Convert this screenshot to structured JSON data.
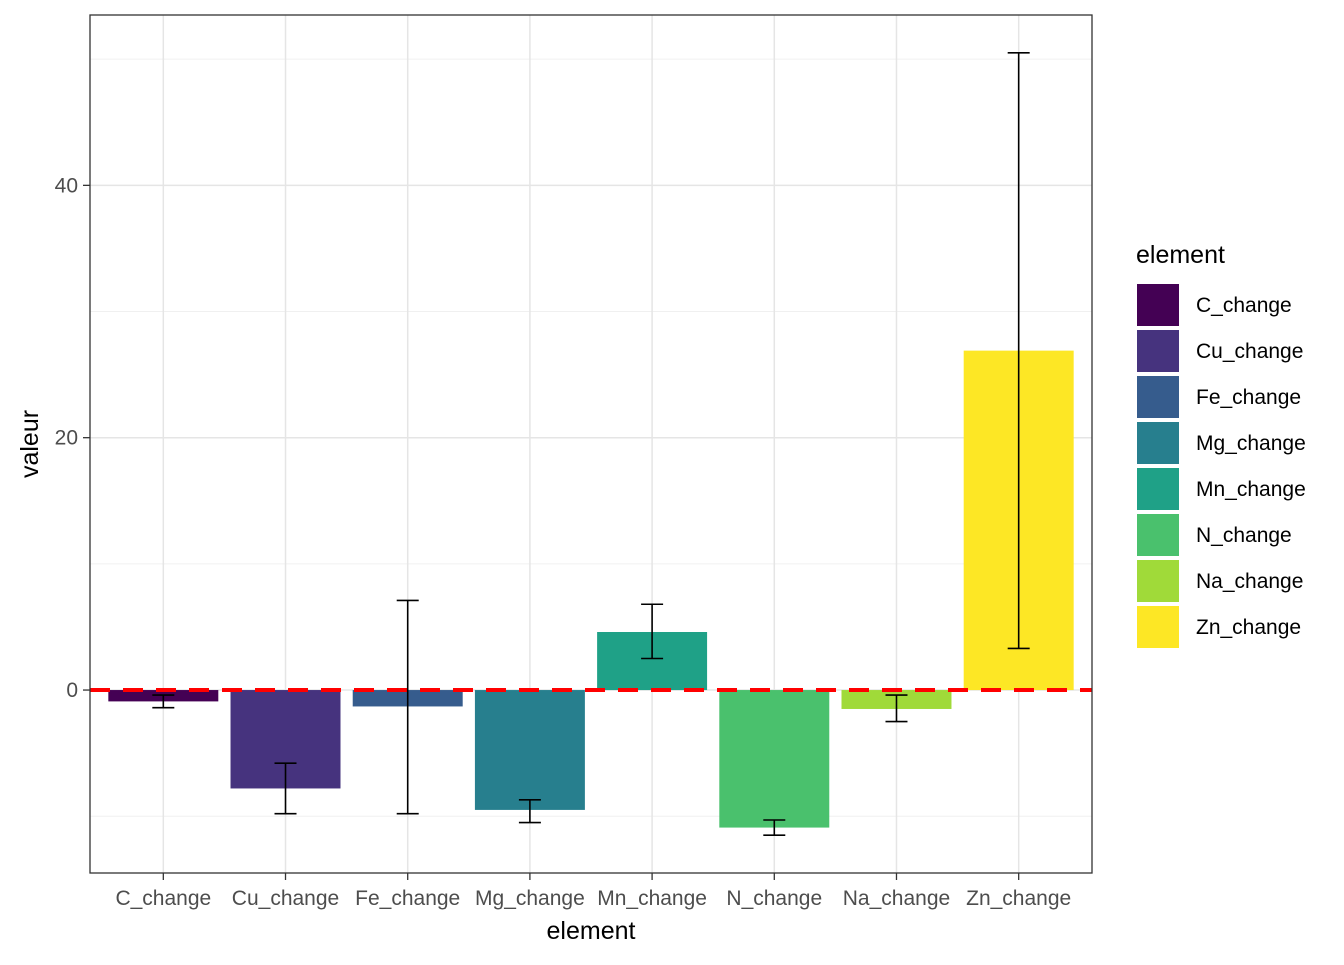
{
  "chart_data": {
    "type": "bar",
    "xlabel": "element",
    "ylabel": "valeur",
    "categories": [
      "C_change",
      "Cu_change",
      "Fe_change",
      "Mg_change",
      "Mn_change",
      "N_change",
      "Na_change",
      "Zn_change"
    ],
    "values": [
      -0.9,
      -7.8,
      -1.3,
      -9.5,
      4.6,
      -10.9,
      -1.5,
      26.9
    ],
    "error_low": [
      -1.4,
      -9.8,
      -9.8,
      -10.5,
      2.5,
      -11.5,
      -2.5,
      3.3
    ],
    "error_high": [
      -0.4,
      -5.8,
      7.1,
      -8.7,
      6.8,
      -10.3,
      -0.4,
      50.5
    ],
    "colors": [
      "#440154",
      "#46337E",
      "#365C8D",
      "#277F8E",
      "#1FA187",
      "#4AC16D",
      "#A0DA39",
      "#FDE725"
    ],
    "yticks": [
      0,
      20,
      40
    ],
    "ylim": [
      -14.5,
      53.5
    ],
    "reference_line": {
      "y": 0,
      "color": "#FF0000",
      "style": "dashed"
    },
    "legend": {
      "title": "element",
      "position": "right",
      "entries": [
        "C_change",
        "Cu_change",
        "Fe_change",
        "Mg_change",
        "Mn_change",
        "N_change",
        "Na_change",
        "Zn_change"
      ]
    },
    "grid": true,
    "theme": "bw"
  }
}
